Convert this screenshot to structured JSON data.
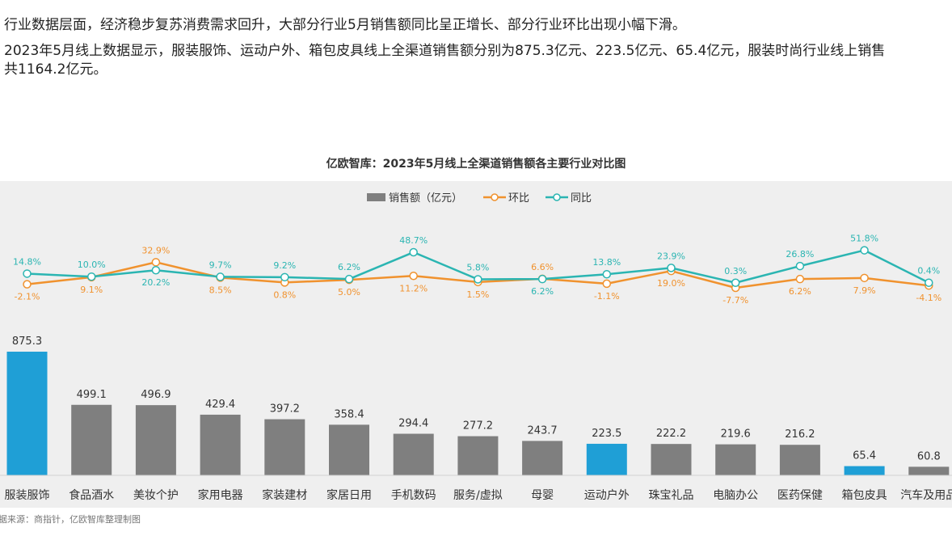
{
  "text": {
    "p1": "行业数据层面，经济稳步复苏消费需求回升，大部分行业5月销售额同比呈正增长、部分行业环比出现小幅下滑。",
    "p2": "2023年5月线上数据显示，服装服饰、运动户外、箱包皮具线上全渠道销售额分别为875.3亿元、223.5亿元、65.4亿元，服装时尚行业线上销售",
    "p3": "共1164.2亿元。",
    "source": "据来源：商指针，亿欧智库整理制图"
  },
  "colors": {
    "bar_default": "#7f7f7f",
    "bar_highlight": "#1f9fd6",
    "mom_line": "#f0922e",
    "yoy_line": "#2bb5b2",
    "plot_bg": "#efefef"
  },
  "chart_data": {
    "type": "bar",
    "title": "亿欧智库：2023年5月线上全渠道销售额各主要行业对比图",
    "legend_position": "top-center",
    "categories": [
      "服装服饰",
      "食品酒水",
      "美妆个护",
      "家用电器",
      "家装建材",
      "家居日用",
      "手机数码",
      "服务/虚拟",
      "母婴",
      "运动户外",
      "珠宝礼品",
      "电脑办公",
      "医药保健",
      "箱包皮具",
      "汽车及用品"
    ],
    "series": [
      {
        "name": "销售额（亿元）",
        "type": "bar",
        "values": [
          875.3,
          499.1,
          496.9,
          429.4,
          397.2,
          358.4,
          294.4,
          277.2,
          243.7,
          223.5,
          222.2,
          219.6,
          216.2,
          65.4,
          60.8
        ],
        "labels": [
          "875.3",
          "499.1",
          "496.9",
          "429.4",
          "397.2",
          "358.4",
          "294.4",
          "277.2",
          "243.7",
          "223.5",
          "222.2",
          "219.6",
          "216.2",
          "65.4",
          "60.8"
        ],
        "highlight": [
          true,
          false,
          false,
          false,
          false,
          false,
          false,
          false,
          false,
          true,
          false,
          false,
          false,
          true,
          false
        ]
      },
      {
        "name": "环比",
        "type": "line",
        "values": [
          -2.1,
          9.1,
          32.9,
          8.5,
          0.8,
          5.0,
          11.2,
          1.5,
          6.6,
          -1.1,
          19.0,
          -7.7,
          6.2,
          7.9,
          -4.1
        ],
        "labels": [
          "-2.1%",
          "9.1%",
          "32.9%",
          "8.5%",
          "0.8%",
          "5.0%",
          "11.2%",
          "1.5%",
          "6.6%",
          "-1.1%",
          "19.0%",
          "-7.7%",
          "6.2%",
          "7.9%",
          "-4.1%"
        ]
      },
      {
        "name": "同比",
        "type": "line",
        "values": [
          14.8,
          10.0,
          20.2,
          9.7,
          9.2,
          6.2,
          48.7,
          5.8,
          6.2,
          13.8,
          23.9,
          0.3,
          26.8,
          51.8,
          0.4
        ],
        "labels": [
          "14.8%",
          "10.0%",
          "20.2%",
          "9.7%",
          "9.2%",
          "6.2%",
          "48.7%",
          "5.8%",
          "6.2%",
          "13.8%",
          "23.9%",
          "0.3%",
          "26.8%",
          "51.8%",
          "0.4%"
        ]
      }
    ]
  }
}
